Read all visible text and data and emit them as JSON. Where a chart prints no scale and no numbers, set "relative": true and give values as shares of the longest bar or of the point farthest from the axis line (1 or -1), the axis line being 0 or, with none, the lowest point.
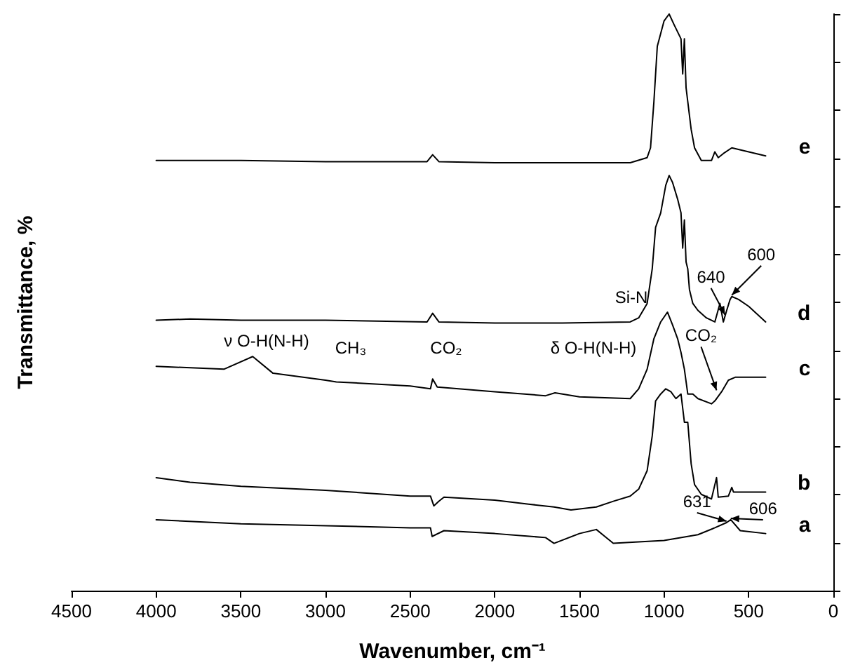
{
  "chart_data": {
    "type": "line",
    "xlabel": "Wavenumber, cm⁻¹",
    "ylabel": "Transmittance, %",
    "xlim": [
      4500,
      0
    ],
    "xticks": [
      4500,
      4000,
      3500,
      3000,
      2500,
      2000,
      1500,
      1000,
      500,
      0
    ],
    "relative": true,
    "legend": "right",
    "grid": false,
    "marker": "none",
    "line_style": "solid",
    "series": [
      {
        "name": "e",
        "color": "#000000",
        "x": [
          4000,
          3500,
          3000,
          2400,
          2367,
          2330,
          2000,
          1500,
          1200,
          1100,
          1080,
          1060,
          1040,
          1000,
          970,
          940,
          900,
          890,
          880,
          870,
          860,
          840,
          820,
          780,
          720,
          700,
          680,
          650,
          600,
          500,
          400
        ],
        "values": [
          0.746,
          0.746,
          0.744,
          0.744,
          0.756,
          0.744,
          0.742,
          0.742,
          0.742,
          0.751,
          0.768,
          0.848,
          0.944,
          0.988,
          1,
          0.981,
          0.957,
          0.896,
          0.957,
          0.872,
          0.848,
          0.8,
          0.768,
          0.746,
          0.746,
          0.761,
          0.751,
          0.758,
          0.768,
          0.761,
          0.754
        ]
      },
      {
        "name": "d",
        "color": "#000000",
        "x": [
          4000,
          3800,
          3500,
          3000,
          2400,
          2367,
          2330,
          2000,
          1600,
          1200,
          1150,
          1100,
          1070,
          1050,
          1020,
          990,
          970,
          950,
          920,
          900,
          890,
          880,
          870,
          860,
          850,
          830,
          800,
          750,
          700,
          670,
          650,
          630,
          610,
          600,
          560,
          500,
          400
        ],
        "values": [
          0.469,
          0.471,
          0.469,
          0.469,
          0.466,
          0.481,
          0.466,
          0.464,
          0.464,
          0.466,
          0.473,
          0.498,
          0.558,
          0.63,
          0.655,
          0.703,
          0.72,
          0.708,
          0.679,
          0.655,
          0.594,
          0.643,
          0.57,
          0.558,
          0.522,
          0.498,
          0.486,
          0.473,
          0.466,
          0.498,
          0.466,
          0.486,
          0.505,
          0.51,
          0.505,
          0.493,
          0.466
        ]
      },
      {
        "name": "c",
        "color": "#000000",
        "x": [
          4000,
          3600,
          3430,
          3310,
          3000,
          2936,
          2500,
          2380,
          2367,
          2340,
          2000,
          1700,
          1644,
          1500,
          1200,
          1150,
          1100,
          1060,
          1020,
          980,
          950,
          920,
          900,
          880,
          860,
          830,
          800,
          720,
          700,
          660,
          620,
          580,
          400
        ],
        "values": [
          0.389,
          0.384,
          0.406,
          0.377,
          0.365,
          0.362,
          0.355,
          0.35,
          0.367,
          0.353,
          0.345,
          0.338,
          0.343,
          0.336,
          0.333,
          0.35,
          0.384,
          0.437,
          0.466,
          0.483,
          0.461,
          0.437,
          0.413,
          0.384,
          0.341,
          0.341,
          0.333,
          0.324,
          0.329,
          0.345,
          0.365,
          0.37,
          0.37
        ]
      },
      {
        "name": "b",
        "color": "#000000",
        "x": [
          4000,
          3800,
          3500,
          3000,
          2500,
          2380,
          2360,
          2330,
          2300,
          2000,
          1800,
          1650,
          1550,
          1400,
          1300,
          1200,
          1150,
          1100,
          1070,
          1050,
          1020,
          990,
          960,
          930,
          900,
          880,
          860,
          840,
          820,
          780,
          720,
          690,
          680,
          620,
          600,
          590,
          400
        ],
        "values": [
          0.196,
          0.188,
          0.181,
          0.174,
          0.164,
          0.164,
          0.147,
          0.155,
          0.162,
          0.157,
          0.15,
          0.145,
          0.14,
          0.145,
          0.155,
          0.164,
          0.176,
          0.208,
          0.268,
          0.329,
          0.341,
          0.35,
          0.345,
          0.333,
          0.341,
          0.292,
          0.292,
          0.22,
          0.184,
          0.167,
          0.159,
          0.196,
          0.162,
          0.164,
          0.179,
          0.171,
          0.171
        ]
      },
      {
        "name": "a",
        "color": "#000000",
        "x": [
          4000,
          3500,
          2500,
          2380,
          2370,
          2300,
          2000,
          1700,
          1650,
          1500,
          1400,
          1300,
          1000,
          800,
          700,
          631,
          606,
          550,
          400
        ],
        "values": [
          0.123,
          0.116,
          0.109,
          0.109,
          0.094,
          0.104,
          0.099,
          0.092,
          0.082,
          0.099,
          0.106,
          0.082,
          0.087,
          0.097,
          0.109,
          0.118,
          0.123,
          0.104,
          0.099
        ]
      }
    ],
    "annotations": [
      "ν O-H(N-H)",
      "CH₃",
      "CO₂",
      "δ O-H(N-H)",
      "Si-N",
      {
        "text": "640",
        "x": 640,
        "y": 0.476
      },
      {
        "text": "600",
        "x": 600,
        "y": 0.51
      },
      {
        "text": "CO₂",
        "x": 690,
        "y": 0.345
      },
      {
        "text": "631",
        "x": 631,
        "y": 0.118
      },
      {
        "text": "606",
        "x": 606,
        "y": 0.123
      }
    ]
  }
}
